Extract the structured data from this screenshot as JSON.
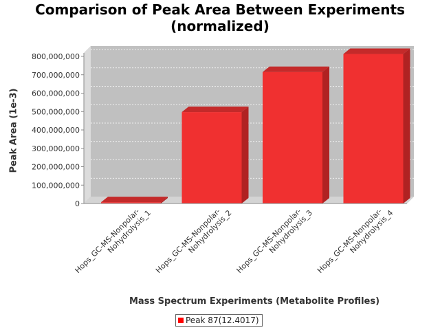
{
  "chart_data": {
    "type": "bar",
    "title": "Comparison of Peak Area Between Experiments\n(normalized)",
    "title_lines": [
      "Comparison of Peak Area Between Experiments",
      "(normalized)"
    ],
    "xlabel": "Mass Spectrum Experiments (Metabolite Profiles)",
    "ylabel": "Peak Area (1e-3)",
    "categories": [
      "Hops_GC-MS-Nonpolar-Nohydrolysis_1",
      "Hops_GC-MS-Nonpolar-Nohydrolysis_2",
      "Hops_GC-MS-Nonpolar-Nohydrolysis_3",
      "Hops_GC-MS-Nonpolar-Nohydrolysis_4"
    ],
    "category_lines": [
      [
        "Hops_GC-MS-Nonpolar-",
        "Nohydrolysis_1"
      ],
      [
        "Hops_GC-MS-Nonpolar-",
        "Nohydrolysis_2"
      ],
      [
        "Hops_GC-MS-Nonpolar-",
        "Nohydrolysis_3"
      ],
      [
        "Hops_GC-MS-Nonpolar-",
        "Nohydrolysis_4"
      ]
    ],
    "series": [
      {
        "name": "Peak 87(12.4017)",
        "color": "#ff0000",
        "values": [
          7000000,
          497000000,
          715000000,
          813000000
        ]
      }
    ],
    "yticks": [
      0,
      100000000,
      200000000,
      300000000,
      400000000,
      500000000,
      600000000,
      700000000,
      800000000
    ],
    "ytick_labels": [
      "0",
      "100,000,000",
      "200,000,000",
      "300,000,000",
      "400,000,000",
      "500,000,000",
      "600,000,000",
      "700,000,000",
      "800,000,000"
    ],
    "ylim": [
      0,
      800000000
    ],
    "grid": true,
    "legend_position": "bottom",
    "three_d": true
  }
}
